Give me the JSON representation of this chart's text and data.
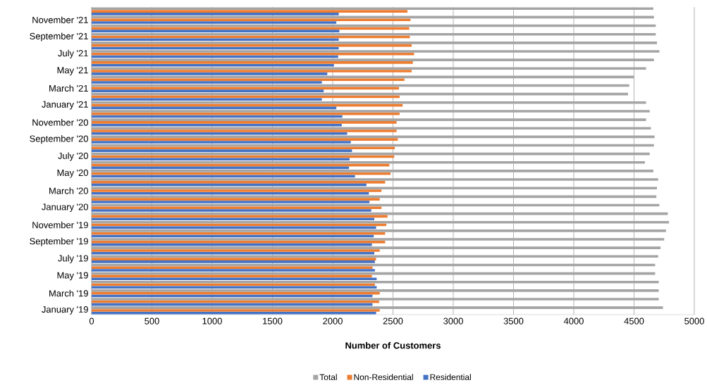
{
  "chart_data": {
    "type": "bar",
    "orientation": "horizontal",
    "xlabel": "Number of Customers",
    "categories": [
      null,
      "November '21",
      null,
      "September '21",
      null,
      "July '21",
      null,
      "May '21",
      null,
      "March '21",
      null,
      "January '21",
      null,
      "November '20",
      null,
      "September '20",
      null,
      "July '20",
      null,
      "May '20",
      null,
      "March '20",
      null,
      "January '20",
      null,
      "November '19",
      null,
      "September '19",
      null,
      "July '19",
      null,
      "May '19",
      null,
      "March '19",
      null,
      "January '19"
    ],
    "series": [
      {
        "name": "Total",
        "color": "#a5a5a5",
        "values": [
          4660,
          4665,
          4680,
          4680,
          4690,
          4710,
          4665,
          4600,
          4500,
          4460,
          4450,
          4600,
          4630,
          4600,
          4640,
          4670,
          4665,
          4630,
          4590,
          4660,
          4700,
          4690,
          4685,
          4710,
          4780,
          4790,
          4765,
          4750,
          4720,
          4700,
          4675,
          4675,
          4705,
          4705,
          4705,
          4740
        ]
      },
      {
        "name": "Non-Residential",
        "color": "#ed7d31",
        "values": [
          2620,
          2645,
          2635,
          2640,
          2655,
          2675,
          2665,
          2655,
          2595,
          2550,
          2555,
          2580,
          2555,
          2530,
          2530,
          2540,
          2515,
          2510,
          2470,
          2480,
          2435,
          2405,
          2390,
          2405,
          2455,
          2445,
          2435,
          2435,
          2390,
          2360,
          2330,
          2325,
          2350,
          2390,
          2385,
          2390
        ]
      },
      {
        "name": "Residential",
        "color": "#4472c4",
        "values": [
          2050,
          2030,
          2055,
          2050,
          2050,
          2045,
          2010,
          1955,
          1910,
          1925,
          1910,
          2030,
          2080,
          2075,
          2120,
          2150,
          2160,
          2140,
          2135,
          2185,
          2280,
          2300,
          2305,
          2320,
          2345,
          2360,
          2340,
          2325,
          2345,
          2350,
          2350,
          2365,
          2365,
          2330,
          2330,
          2360
        ]
      }
    ],
    "xlim": [
      0,
      5000
    ],
    "xticks": [
      0,
      500,
      1000,
      1500,
      2000,
      2500,
      3000,
      3500,
      4000,
      4500,
      5000
    ],
    "grid": "x",
    "legend": "bottom"
  }
}
